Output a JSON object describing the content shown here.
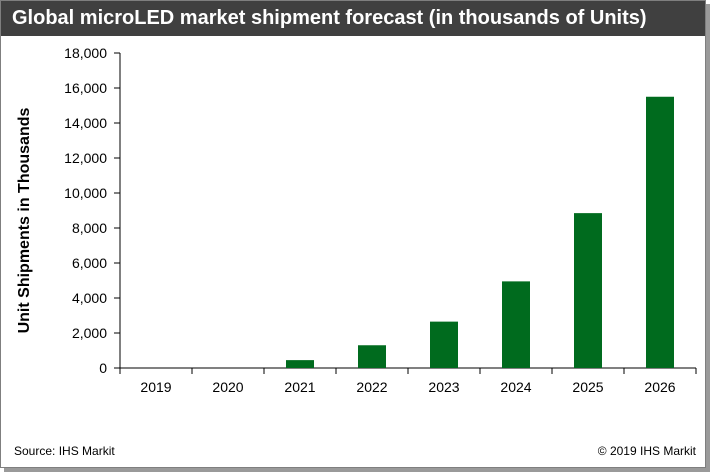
{
  "title": "Global microLED market shipment forecast (in thousands of Units)",
  "footer": {
    "source": "Source: IHS Markit",
    "copyright": "© 2019 IHS Markit"
  },
  "colors": {
    "bar": "#006b1e",
    "title_bg": "#404040",
    "title_text": "#ffffff"
  },
  "chart_data": {
    "type": "bar",
    "title": "Global microLED market shipment forecast (in thousands of Units)",
    "xlabel": "",
    "ylabel": "Unit Shipments in Thousands",
    "categories": [
      "2019",
      "2020",
      "2021",
      "2022",
      "2023",
      "2024",
      "2025",
      "2026"
    ],
    "values": [
      0,
      0,
      450,
      1300,
      2650,
      4950,
      8850,
      15500
    ],
    "ylim": [
      0,
      18000
    ],
    "yticks": [
      0,
      2000,
      4000,
      6000,
      8000,
      10000,
      12000,
      14000,
      16000,
      18000
    ],
    "ytick_labels": [
      "0",
      "2,000",
      "4,000",
      "6,000",
      "8,000",
      "10,000",
      "12,000",
      "14,000",
      "16,000",
      "18,000"
    ],
    "grid": false,
    "legend": "none"
  }
}
